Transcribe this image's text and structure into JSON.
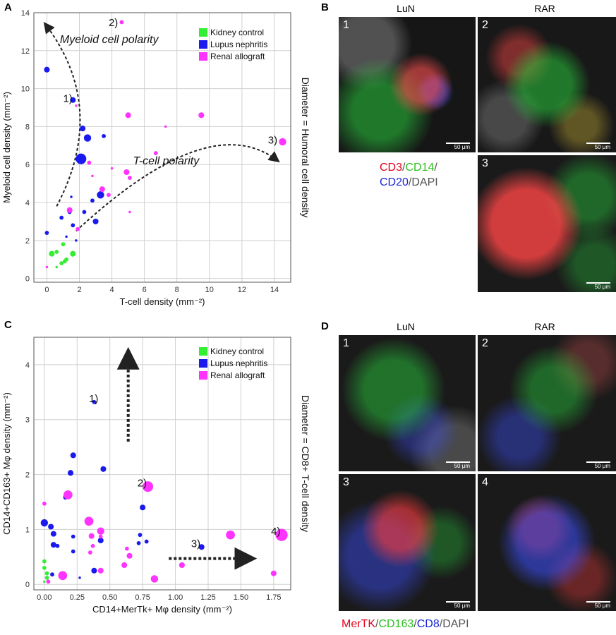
{
  "panels": {
    "A": {
      "letter": "A",
      "chart_data": {
        "type": "scatter",
        "xlabel": "T-cell density (mm⁻²)",
        "ylabel": "Myeloid cell density (mm⁻²)",
        "right_label": "Diameter = Humoral cell density",
        "xlim": [
          -0.8,
          15
        ],
        "ylim": [
          -0.2,
          14
        ],
        "xticks": [
          0,
          2,
          4,
          6,
          8,
          10,
          12,
          14
        ],
        "yticks": [
          0,
          2,
          4,
          6,
          8,
          10,
          12,
          14
        ],
        "grid": true,
        "legend_position": "top-right",
        "legend": [
          "Kidney control",
          "Lupus nephritis",
          "Renal allograft"
        ],
        "colors": {
          "Kidney control": "#33ee33",
          "Lupus nephritis": "#1a1aee",
          "Renal allograft": "#ff33ff"
        },
        "series": [
          {
            "name": "Kidney control",
            "points": [
              [
                0.3,
                1.3
              ],
              [
                0.6,
                1.4
              ],
              [
                0.9,
                0.8
              ],
              [
                1.1,
                0.9
              ],
              [
                1.2,
                1.0
              ],
              [
                1.6,
                1.3
              ],
              [
                0.6,
                0.6
              ],
              [
                1.0,
                1.8
              ]
            ],
            "sizes": [
              3,
              2,
              2,
              2,
              2,
              3,
              1,
              2
            ]
          },
          {
            "name": "Lupus nephritis",
            "points": [
              [
                0.0,
                11.0
              ],
              [
                1.6,
                9.4
              ],
              [
                2.2,
                7.9
              ],
              [
                2.5,
                7.4
              ],
              [
                2.1,
                6.3
              ],
              [
                3.5,
                7.5
              ],
              [
                3.3,
                4.4
              ],
              [
                2.8,
                4.1
              ],
              [
                1.4,
                3.5
              ],
              [
                0.9,
                3.2
              ],
              [
                1.6,
                2.8
              ],
              [
                3.0,
                3.0
              ],
              [
                0.0,
                2.4
              ],
              [
                2.3,
                3.5
              ],
              [
                1.8,
                2.0
              ],
              [
                1.2,
                2.2
              ],
              [
                1.5,
                4.3
              ]
            ],
            "sizes": [
              3,
              3,
              3,
              4,
              6,
              2,
              4,
              2,
              2,
              2,
              2,
              3,
              2,
              2,
              1,
              1,
              1
            ]
          },
          {
            "name": "Renal allograft",
            "points": [
              [
                4.6,
                13.5
              ],
              [
                1.8,
                9.1
              ],
              [
                5.0,
                8.6
              ],
              [
                9.5,
                8.6
              ],
              [
                7.3,
                8.0
              ],
              [
                14.5,
                7.2
              ],
              [
                2.6,
                6.1
              ],
              [
                6.7,
                6.6
              ],
              [
                4.9,
                5.6
              ],
              [
                5.1,
                5.3
              ],
              [
                3.4,
                4.7
              ],
              [
                1.4,
                3.6
              ],
              [
                3.8,
                4.4
              ],
              [
                1.9,
                2.6
              ],
              [
                5.1,
                3.5
              ],
              [
                0.0,
                0.6
              ],
              [
                4.0,
                5.8
              ],
              [
                2.8,
                5.4
              ]
            ],
            "sizes": [
              2,
              1,
              3,
              3,
              1,
              4,
              2,
              2,
              3,
              2,
              3,
              3,
              2,
              2,
              1,
              1,
              1,
              1
            ]
          }
        ],
        "annotations": [
          {
            "label": "1)",
            "x": 1.0,
            "y": 9.3
          },
          {
            "label": "2)",
            "x": 3.8,
            "y": 13.3
          },
          {
            "label": "3)",
            "x": 13.6,
            "y": 7.1
          },
          {
            "label": "Myeloid cell polarity",
            "x": 0.8,
            "y": 12.4
          },
          {
            "label": "T-cell polarity",
            "x": 5.3,
            "y": 6.0
          }
        ]
      }
    },
    "B": {
      "letter": "B",
      "col_luN": "LuN",
      "col_rar": "RAR",
      "scale_bar": "50 μm",
      "image_numbers": [
        "1",
        "2",
        "3"
      ],
      "stain": {
        "cd3": "CD3",
        "sep": "/",
        "cd14": "CD14",
        "cd20": "CD20",
        "dapi": "DAPI"
      }
    },
    "C": {
      "letter": "C",
      "chart_data": {
        "type": "scatter",
        "xlabel": "CD14+MerTk+ Mφ density (mm⁻²)",
        "ylabel": "CD14+CD163+ Mφ density (mm⁻²)",
        "right_label": "Diameter = CD8+ T-cell density",
        "xlim": [
          -0.08,
          1.88
        ],
        "ylim": [
          -0.1,
          4.5
        ],
        "xticks": [
          0.0,
          0.25,
          0.5,
          0.75,
          1.0,
          1.25,
          1.5,
          1.75
        ],
        "xtick_labels": [
          "0.00",
          "0.25",
          "0.50",
          "0.75",
          "1.00",
          "1.25",
          "1.50",
          "1.75"
        ],
        "yticks": [
          0,
          1,
          2,
          3,
          4
        ],
        "grid": true,
        "legend_position": "top-right",
        "legend": [
          "Kidney control",
          "Lupus nephritis",
          "Renal allograft"
        ],
        "colors": {
          "Kidney control": "#33ee33",
          "Lupus nephritis": "#1a1aee",
          "Renal allograft": "#ff33ff"
        },
        "series": [
          {
            "name": "Kidney control",
            "points": [
              [
                0.0,
                0.42
              ],
              [
                0.0,
                0.3
              ],
              [
                0.02,
                0.2
              ],
              [
                0.02,
                0.12
              ],
              [
                0.0,
                0.05
              ]
            ],
            "sizes": [
              2,
              2,
              2,
              2,
              1
            ]
          },
          {
            "name": "Lupus nephritis",
            "points": [
              [
                0.38,
                3.32
              ],
              [
                0.22,
                2.35
              ],
              [
                0.45,
                2.1
              ],
              [
                0.2,
                2.03
              ],
              [
                0.16,
                1.6
              ],
              [
                0.16,
                1.58
              ],
              [
                0.75,
                1.4
              ],
              [
                0.0,
                1.12
              ],
              [
                0.05,
                1.05
              ],
              [
                0.07,
                0.92
              ],
              [
                0.07,
                0.72
              ],
              [
                0.1,
                0.7
              ],
              [
                0.22,
                0.87
              ],
              [
                0.22,
                0.6
              ],
              [
                0.43,
                0.8
              ],
              [
                0.73,
                0.9
              ],
              [
                0.72,
                0.75
              ],
              [
                0.78,
                0.78
              ],
              [
                1.2,
                0.68
              ],
              [
                0.06,
                0.18
              ],
              [
                0.38,
                0.25
              ],
              [
                0.27,
                0.12
              ]
            ],
            "sizes": [
              2,
              3,
              3,
              3,
              2,
              2,
              3,
              4,
              3,
              3,
              3,
              2,
              2,
              2,
              3,
              2,
              2,
              2,
              3,
              2,
              3,
              1
            ]
          },
          {
            "name": "Renal allograft",
            "points": [
              [
                0.79,
                1.78
              ],
              [
                0.18,
                1.63
              ],
              [
                0.0,
                1.47
              ],
              [
                0.34,
                1.15
              ],
              [
                0.43,
                0.97
              ],
              [
                0.36,
                0.88
              ],
              [
                0.43,
                0.87
              ],
              [
                0.37,
                0.7
              ],
              [
                0.63,
                0.65
              ],
              [
                0.65,
                0.52
              ],
              [
                0.35,
                0.58
              ],
              [
                0.61,
                0.35
              ],
              [
                1.05,
                0.35
              ],
              [
                1.42,
                0.9
              ],
              [
                1.81,
                0.9
              ],
              [
                1.75,
                0.2
              ],
              [
                0.43,
                0.25
              ],
              [
                0.84,
                0.1
              ],
              [
                0.14,
                0.16
              ],
              [
                0.03,
                0.05
              ]
            ],
            "sizes": [
              6,
              5,
              2,
              5,
              4,
              3,
              2,
              2,
              2,
              3,
              2,
              3,
              3,
              5,
              7,
              3,
              3,
              4,
              5,
              2
            ]
          }
        ],
        "annotations": [
          {
            "label": "1)",
            "x": 0.34,
            "y": 3.32
          },
          {
            "label": "2)",
            "x": 0.71,
            "y": 1.78
          },
          {
            "label": "3)",
            "x": 1.12,
            "y": 0.68
          },
          {
            "label": "4)",
            "x": 1.73,
            "y": 0.9
          }
        ]
      }
    },
    "D": {
      "letter": "D",
      "col_luN": "LuN",
      "col_rar": "RAR",
      "scale_bar": "50 μm",
      "image_numbers": [
        "1",
        "2",
        "3",
        "4"
      ],
      "stain": {
        "mertk": "MerTK",
        "sep": "/",
        "cd163": "CD163",
        "cd8": "CD8",
        "dapi": "DAPI"
      }
    }
  }
}
